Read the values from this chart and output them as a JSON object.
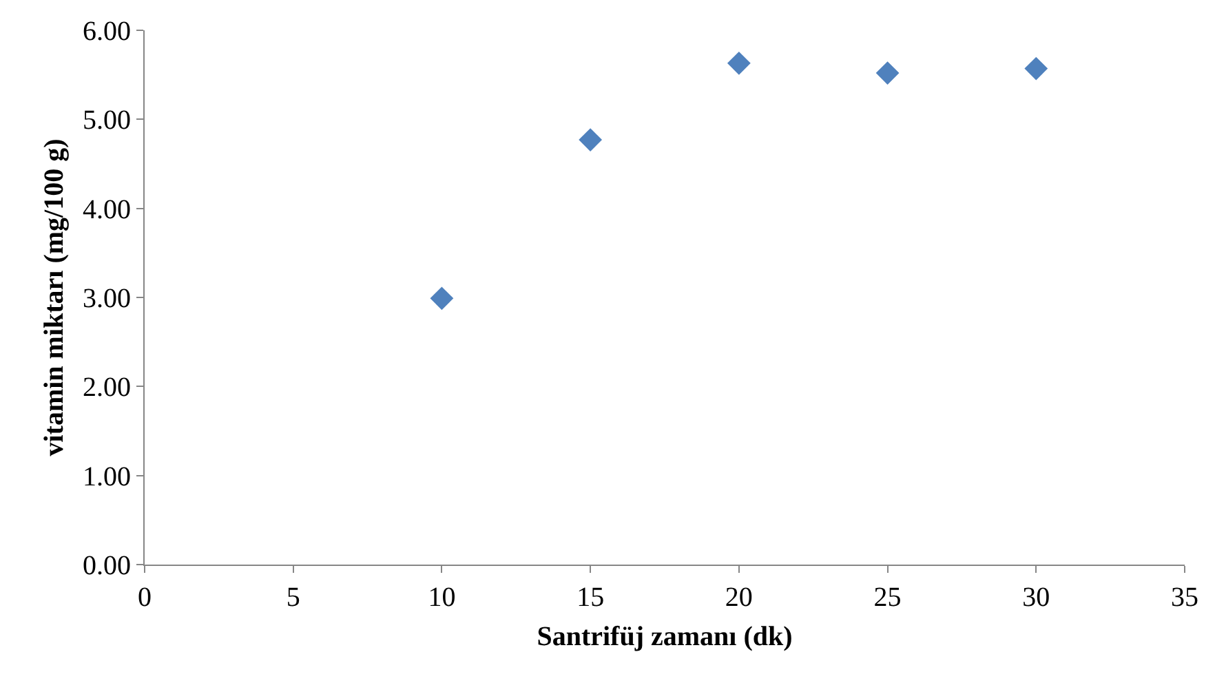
{
  "chart_data": {
    "type": "scatter",
    "xlabel": "Santrifüj zamanı (dk)",
    "ylabel": "vitamin miktarı (mg/100 g)",
    "x": [
      10,
      15,
      20,
      25,
      30
    ],
    "series": [
      {
        "color": "#4f81bd",
        "values": [
          2.99,
          4.77,
          5.63,
          5.52,
          5.57
        ]
      }
    ],
    "marker": "diamond",
    "xlim": [
      0,
      35
    ],
    "xticks": [
      0,
      5,
      10,
      15,
      20,
      25,
      30,
      35
    ],
    "ylim": [
      0,
      6
    ],
    "yticks": [
      {
        "value": 0,
        "label": "0.00"
      },
      {
        "value": 1,
        "label": "1.00"
      },
      {
        "value": 2,
        "label": "2.00"
      },
      {
        "value": 3,
        "label": "3.00"
      },
      {
        "value": 4,
        "label": "4.00"
      },
      {
        "value": 5,
        "label": "5.00"
      },
      {
        "value": 6,
        "label": "6.00"
      }
    ]
  }
}
